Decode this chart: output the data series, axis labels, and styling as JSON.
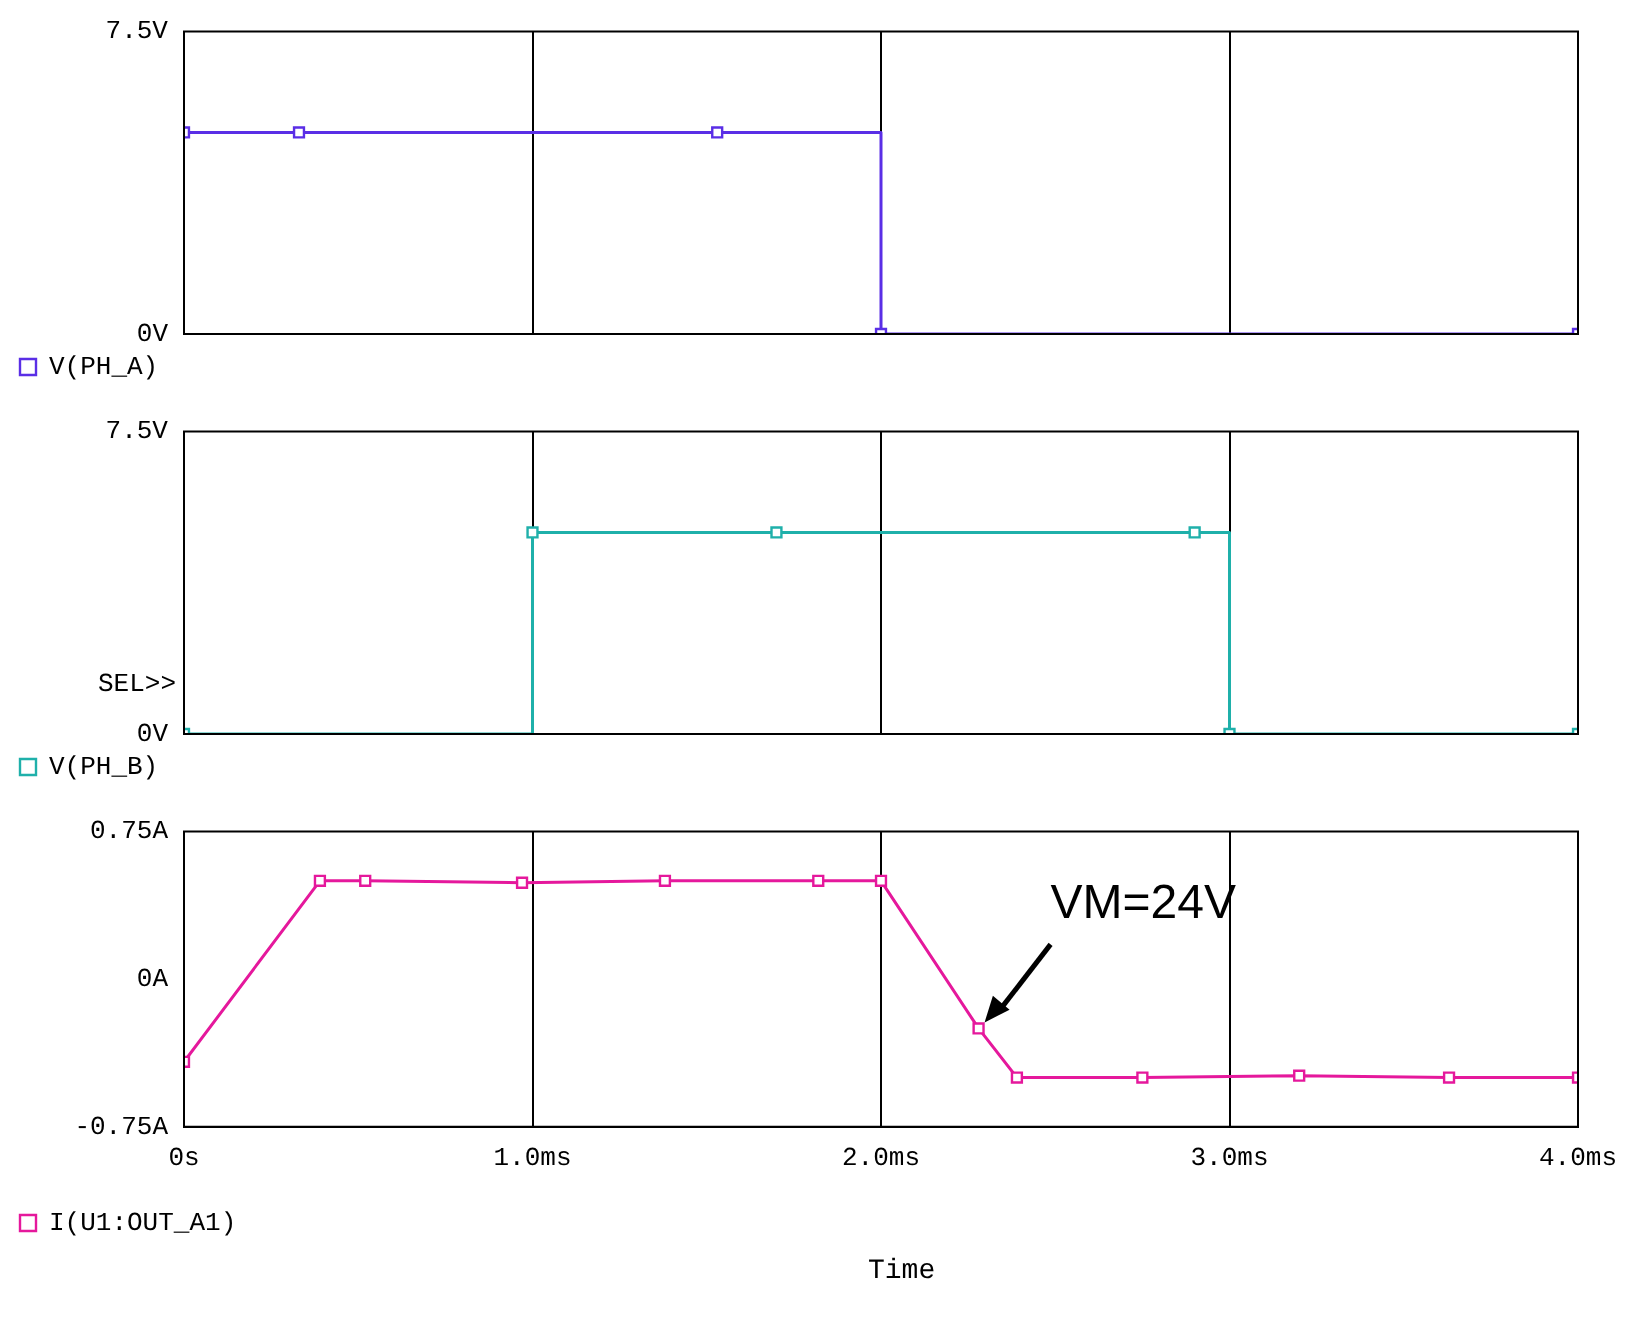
{
  "chart_data": [
    {
      "type": "step",
      "xlim": [
        0,
        4
      ],
      "xticks": [
        0,
        1,
        2,
        3,
        4
      ],
      "ylim": [
        0,
        7.5
      ],
      "yticks": [
        {
          "value": 0,
          "label": "0V"
        },
        {
          "value": 7.5,
          "label": "7.5V"
        }
      ],
      "tick_labels": "y",
      "grid": "x",
      "legend": "bottom left",
      "marker": "square",
      "line_style": "solid",
      "series": [
        {
          "name": "V(PH_A)",
          "color": "#5a2ee6",
          "x": [
            0,
            0.33,
            1.53,
            2,
            4
          ],
          "values": [
            5,
            5,
            5,
            0,
            0
          ]
        }
      ]
    },
    {
      "type": "step",
      "xlim": [
        0,
        4
      ],
      "xticks": [
        0,
        1,
        2,
        3,
        4
      ],
      "ylim": [
        0,
        7.5
      ],
      "yticks": [
        {
          "value": 0,
          "label": "0V"
        },
        {
          "value": 7.5,
          "label": "7.5V"
        }
      ],
      "tick_labels": "y",
      "grid": "x",
      "legend": "bottom left",
      "marker": "square",
      "line_style": "solid",
      "annotations": [
        "SEL>>"
      ],
      "series": [
        {
          "name": "V(PH_B)",
          "color": "#1fb0aa",
          "x": [
            0,
            1,
            1.7,
            2.9,
            3,
            4
          ],
          "values": [
            0,
            5,
            5,
            5,
            0,
            0
          ]
        }
      ]
    },
    {
      "type": "line",
      "xlim": [
        0,
        4
      ],
      "xticks": [
        {
          "value": 0,
          "label": "0s"
        },
        {
          "value": 1,
          "label": "1.0ms"
        },
        {
          "value": 2,
          "label": "2.0ms"
        },
        {
          "value": 3,
          "label": "3.0ms"
        },
        {
          "value": 4,
          "label": "4.0ms"
        }
      ],
      "ylim": [
        -0.75,
        0.75
      ],
      "yticks": [
        {
          "value": -0.75,
          "label": "-0.75A"
        },
        {
          "value": 0,
          "label": "0A"
        },
        {
          "value": 0.75,
          "label": "0.75A"
        }
      ],
      "xlabel": "Time",
      "grid": "x",
      "legend": "bottom left",
      "marker": "square",
      "line_style": "solid",
      "annotations": [
        {
          "text": "VM=24V",
          "x": 2.28,
          "y": -0.25
        }
      ],
      "series": [
        {
          "name": "I(U1:OUT_A1)",
          "color": "#e5189c",
          "x": [
            0,
            0.39,
            0.52,
            0.97,
            1.38,
            1.82,
            2,
            2.28,
            2.39,
            2.75,
            3.2,
            3.63,
            4
          ],
          "values": [
            -0.42,
            0.5,
            0.5,
            0.49,
            0.5,
            0.5,
            0.5,
            -0.25,
            -0.5,
            -0.5,
            -0.49,
            -0.5,
            -0.5
          ]
        }
      ]
    }
  ]
}
